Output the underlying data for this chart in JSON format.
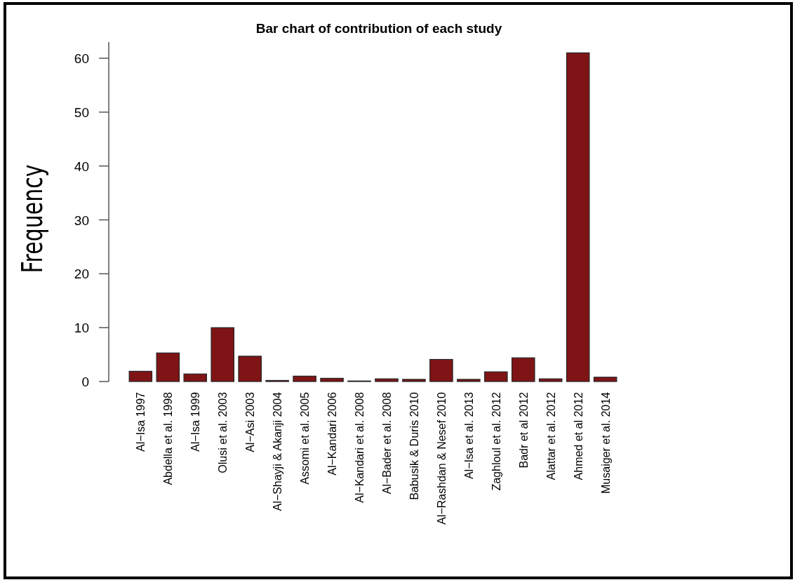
{
  "chart_data": {
    "type": "bar",
    "title": "Bar chart of contribution of each study",
    "ylabel": "Frequency",
    "categories": [
      "Al−Isa 1997",
      "Abdella et al. 1998",
      "Al−Isa 1999",
      "Olusi et al. 2003",
      "Al−Asi 2003",
      "Al−Shayji & Akanji 2004",
      "Assomi et al. 2005",
      "Al−Kandari 2006",
      "Al−Kandari et al. 2008",
      "Al−Bader et al. 2008",
      "Babusik & Duris 2010",
      "Al−Rashdan & Nesef 2010",
      "Al−Isa et al. 2013",
      "Zaghloul et al. 2012",
      "Badr et al  2012",
      "Alattar et al.  2012",
      "Ahmed et al 2012",
      "Musaiger et al. 2014"
    ],
    "values": [
      1.9,
      5.3,
      1.4,
      10.0,
      4.7,
      0.2,
      1.0,
      0.6,
      0.1,
      0.5,
      0.4,
      4.1,
      0.4,
      1.8,
      4.4,
      0.5,
      61,
      0.8
    ],
    "color": "#7f1416",
    "ylim": [
      0,
      63
    ],
    "yticks": [
      0,
      10,
      20,
      30,
      40,
      50,
      60
    ]
  }
}
